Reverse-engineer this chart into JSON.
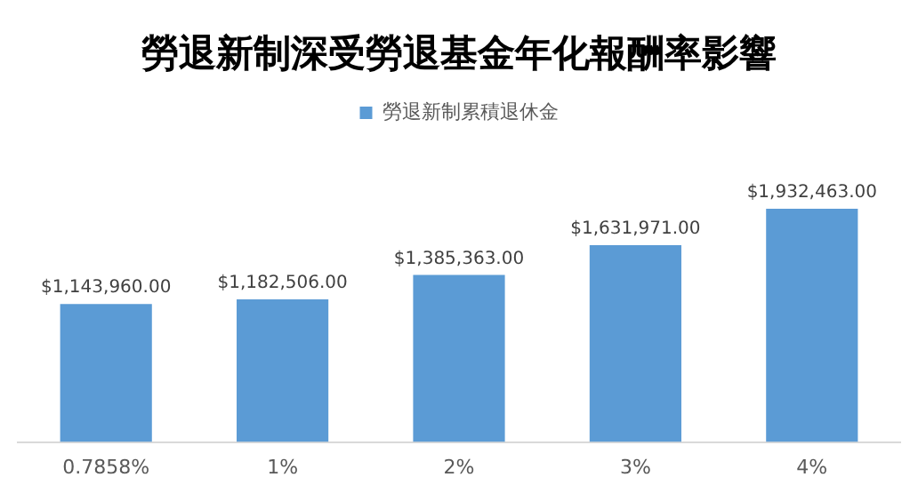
{
  "chart_data": {
    "type": "bar",
    "title": "勞退新制深受勞退基金年化報酬率影響",
    "categories": [
      "0.7858%",
      "1%",
      "2%",
      "3%",
      "4%"
    ],
    "series": [
      {
        "name": "勞退新制累積退休金",
        "color": "#5b9bd5",
        "values": [
          1143960,
          1182506,
          1385363,
          1631971,
          1932463
        ],
        "value_labels": [
          "$1,143,960.00",
          "$1,182,506.00",
          "$1,385,363.00",
          "$1,631,971.00",
          "$1,932,463.00"
        ]
      }
    ],
    "grid": false,
    "legend": "top",
    "tick_labels": "x"
  }
}
